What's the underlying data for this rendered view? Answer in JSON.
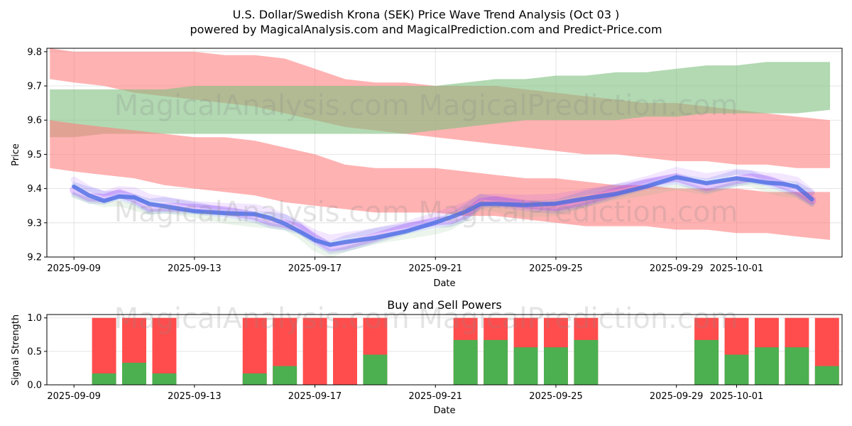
{
  "title_line1": "U.S. Dollar/Swedish Krona (SEK) Price Wave Trend Analysis (Oct 03 )",
  "title_line2": "powered by MagicalAnalysis.com and MagicalPrediction.com and Predict-Price.com",
  "watermark": "MagicalAnalysis.com    MagicalPrediction.com",
  "colors": {
    "red_band": "#ff7f7f",
    "green_band": "#7fbf7f",
    "blue_line": "#4169e1",
    "purple": "#9b30ff",
    "buy": "#4caf50",
    "sell": "#ff4d4d",
    "grid": "#dddddd"
  },
  "chart_data": [
    {
      "type": "area",
      "title": "",
      "xlabel": "Date",
      "ylabel": "Price",
      "ylim": [
        9.2,
        9.81
      ],
      "xlim_days": [
        -0.9,
        25.5
      ],
      "x_ticks": [
        {
          "day": 0,
          "label": "2025-09-09"
        },
        {
          "day": 4,
          "label": "2025-09-13"
        },
        {
          "day": 8,
          "label": "2025-09-17"
        },
        {
          "day": 12,
          "label": "2025-09-21"
        },
        {
          "day": 16,
          "label": "2025-09-25"
        },
        {
          "day": 20,
          "label": "2025-09-29"
        },
        {
          "day": 22,
          "label": "2025-10-01"
        }
      ],
      "y_ticks": [
        9.2,
        9.3,
        9.4,
        9.5,
        9.6,
        9.7,
        9.8
      ],
      "x_days": [
        -0.8,
        0,
        1,
        2,
        3,
        4,
        5,
        6,
        7,
        8,
        9,
        10,
        11,
        12,
        13,
        14,
        15,
        16,
        17,
        18,
        19,
        20,
        21,
        22,
        23,
        24,
        25.1
      ],
      "bands": [
        {
          "name": "upper red band",
          "color": "red",
          "upper": [
            9.81,
            9.8,
            9.8,
            9.8,
            9.8,
            9.8,
            9.79,
            9.79,
            9.78,
            9.75,
            9.72,
            9.71,
            9.71,
            9.7,
            9.7,
            9.7,
            9.69,
            9.68,
            9.67,
            9.66,
            9.65,
            9.65,
            9.64,
            9.63,
            9.62,
            9.61,
            9.6
          ],
          "lower": [
            9.72,
            9.71,
            9.7,
            9.68,
            9.67,
            9.66,
            9.65,
            9.64,
            9.62,
            9.6,
            9.58,
            9.57,
            9.56,
            9.55,
            9.54,
            9.53,
            9.52,
            9.51,
            9.5,
            9.5,
            9.49,
            9.48,
            9.48,
            9.47,
            9.47,
            9.46,
            9.46
          ]
        },
        {
          "name": "green band",
          "color": "green",
          "upper": [
            9.69,
            9.69,
            9.69,
            9.69,
            9.69,
            9.7,
            9.7,
            9.7,
            9.7,
            9.7,
            9.7,
            9.7,
            9.7,
            9.7,
            9.71,
            9.72,
            9.72,
            9.73,
            9.73,
            9.74,
            9.74,
            9.75,
            9.76,
            9.76,
            9.77,
            9.77,
            9.77
          ],
          "lower": [
            9.55,
            9.55,
            9.56,
            9.56,
            9.56,
            9.56,
            9.56,
            9.56,
            9.56,
            9.56,
            9.56,
            9.56,
            9.56,
            9.57,
            9.58,
            9.59,
            9.6,
            9.6,
            9.6,
            9.6,
            9.61,
            9.61,
            9.62,
            9.62,
            9.62,
            9.62,
            9.63
          ]
        },
        {
          "name": "lower red band",
          "color": "red",
          "upper": [
            9.6,
            9.59,
            9.58,
            9.57,
            9.56,
            9.55,
            9.55,
            9.54,
            9.52,
            9.5,
            9.47,
            9.46,
            9.46,
            9.46,
            9.45,
            9.44,
            9.43,
            9.43,
            9.42,
            9.41,
            9.41,
            9.4,
            9.4,
            9.4,
            9.39,
            9.39,
            9.39
          ],
          "lower": [
            9.46,
            9.45,
            9.44,
            9.43,
            9.41,
            9.4,
            9.39,
            9.38,
            9.36,
            9.35,
            9.34,
            9.33,
            9.33,
            9.33,
            9.32,
            9.32,
            9.31,
            9.3,
            9.29,
            9.29,
            9.29,
            9.28,
            9.28,
            9.27,
            9.27,
            9.26,
            9.25
          ]
        }
      ],
      "price_series": {
        "name": "price wave",
        "x": [
          0,
          0.5,
          1,
          1.5,
          2,
          2.5,
          3,
          4,
          5,
          6,
          6.5,
          7,
          7.5,
          8,
          8.5,
          9,
          10,
          11,
          12,
          12.5,
          13,
          13.5,
          14,
          15,
          16,
          17,
          18,
          19,
          20,
          21,
          22,
          22.5,
          23,
          23.5,
          24,
          24.5
        ],
        "y": [
          9.4,
          9.38,
          9.37,
          9.38,
          9.37,
          9.35,
          9.35,
          9.34,
          9.33,
          9.32,
          9.31,
          9.3,
          9.28,
          9.25,
          9.23,
          9.24,
          9.26,
          9.28,
          9.3,
          9.31,
          9.33,
          9.36,
          9.36,
          9.35,
          9.35,
          9.37,
          9.39,
          9.41,
          9.43,
          9.41,
          9.43,
          9.43,
          9.42,
          9.41,
          9.4,
          9.37
        ]
      }
    },
    {
      "type": "bar",
      "title": "Buy and Sell Powers",
      "xlabel": "Date",
      "ylabel": "Signal Strength",
      "ylim": [
        0,
        1.05
      ],
      "xlim_days": [
        -0.9,
        25.5
      ],
      "x_ticks": [
        {
          "day": 0,
          "label": "2025-09-09"
        },
        {
          "day": 4,
          "label": "2025-09-13"
        },
        {
          "day": 8,
          "label": "2025-09-17"
        },
        {
          "day": 12,
          "label": "2025-09-21"
        },
        {
          "day": 16,
          "label": "2025-09-25"
        },
        {
          "day": 20,
          "label": "2025-09-29"
        },
        {
          "day": 22,
          "label": "2025-10-01"
        }
      ],
      "y_ticks": [
        0.0,
        0.5,
        1.0
      ],
      "bars": [
        {
          "day": 1,
          "buy": 0.17
        },
        {
          "day": 2,
          "buy": 0.33
        },
        {
          "day": 3,
          "buy": 0.17
        },
        {
          "day": 6,
          "buy": 0.17
        },
        {
          "day": 7,
          "buy": 0.28
        },
        {
          "day": 8,
          "buy": 0.0
        },
        {
          "day": 9,
          "buy": 0.0
        },
        {
          "day": 10,
          "buy": 0.45
        },
        {
          "day": 13,
          "buy": 0.67
        },
        {
          "day": 14,
          "buy": 0.67
        },
        {
          "day": 15,
          "buy": 0.56
        },
        {
          "day": 16,
          "buy": 0.56
        },
        {
          "day": 17,
          "buy": 0.67
        },
        {
          "day": 21,
          "buy": 0.67
        },
        {
          "day": 22,
          "buy": 0.45
        },
        {
          "day": 23,
          "buy": 0.56
        },
        {
          "day": 24,
          "buy": 0.56
        },
        {
          "day": 25,
          "buy": 0.28
        }
      ]
    }
  ]
}
